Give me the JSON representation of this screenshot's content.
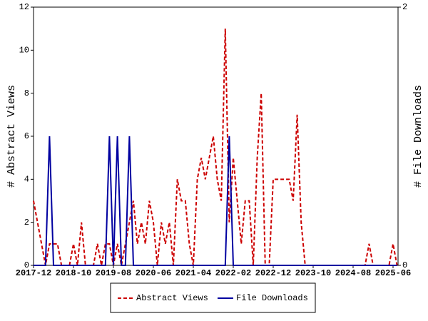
{
  "chart_data": {
    "type": "line",
    "x": [
      "2017-12",
      "2018-01",
      "2018-02",
      "2018-03",
      "2018-04",
      "2018-05",
      "2018-06",
      "2018-07",
      "2018-08",
      "2018-09",
      "2018-10",
      "2018-11",
      "2018-12",
      "2019-01",
      "2019-02",
      "2019-03",
      "2019-04",
      "2019-05",
      "2019-06",
      "2019-07",
      "2019-08",
      "2019-09",
      "2019-10",
      "2019-11",
      "2019-12",
      "2020-01",
      "2020-02",
      "2020-03",
      "2020-04",
      "2020-05",
      "2020-06",
      "2020-07",
      "2020-08",
      "2020-09",
      "2020-10",
      "2020-11",
      "2020-12",
      "2021-01",
      "2021-02",
      "2021-03",
      "2021-04",
      "2021-05",
      "2021-06",
      "2021-07",
      "2021-08",
      "2021-09",
      "2021-10",
      "2021-11",
      "2021-12",
      "2022-01",
      "2022-02",
      "2022-03",
      "2022-04",
      "2022-05",
      "2022-06",
      "2022-07",
      "2022-08",
      "2022-09",
      "2022-10",
      "2022-11",
      "2022-12",
      "2023-01",
      "2023-02",
      "2023-03",
      "2023-04",
      "2023-05",
      "2023-06",
      "2023-07",
      "2023-08",
      "2023-09",
      "2023-10",
      "2023-11",
      "2023-12",
      "2024-01",
      "2024-02",
      "2024-03",
      "2024-04",
      "2024-05",
      "2024-06",
      "2024-07",
      "2024-08",
      "2024-09",
      "2024-10",
      "2024-11",
      "2024-12",
      "2025-01",
      "2025-02",
      "2025-03",
      "2025-04",
      "2025-05",
      "2025-06",
      "2025-07"
    ],
    "xticks": [
      "2017-12",
      "2018-10",
      "2019-08",
      "2020-06",
      "2021-04",
      "2022-02",
      "2022-12",
      "2023-10",
      "2024-08",
      "2025-06"
    ],
    "series": [
      {
        "name": "Abstract Views",
        "color": "#cc0000",
        "dash": true,
        "values": [
          3,
          2,
          1,
          0,
          1,
          1,
          1,
          0,
          0,
          0,
          1,
          0,
          2,
          0,
          0,
          0,
          1,
          0,
          1,
          1,
          0,
          1,
          0,
          1,
          2,
          3,
          1,
          2,
          1,
          3,
          2,
          0,
          2,
          1,
          2,
          0,
          4,
          3,
          3,
          1,
          0,
          4,
          5,
          4,
          5,
          6,
          4,
          3,
          11,
          2,
          5,
          3,
          1,
          3,
          3,
          0,
          5,
          8,
          0,
          0,
          4,
          4,
          4,
          4,
          4,
          3,
          7,
          2,
          0,
          0,
          0,
          0,
          0,
          0,
          0,
          0,
          0,
          0,
          0,
          0,
          0,
          0,
          0,
          0,
          1,
          0,
          0,
          0,
          0,
          0,
          1,
          0
        ]
      },
      {
        "name": "File Downloads",
        "color": "#0000a0",
        "dash": false,
        "axis": "y2",
        "values": [
          0,
          0,
          0,
          0,
          1,
          0,
          0,
          0,
          0,
          0,
          0,
          0,
          0,
          0,
          0,
          0,
          0,
          0,
          0,
          1,
          0,
          1,
          0,
          0,
          1,
          0,
          0,
          0,
          0,
          0,
          0,
          0,
          0,
          0,
          0,
          0,
          0,
          0,
          0,
          0,
          0,
          0,
          0,
          0,
          0,
          0,
          0,
          0,
          0,
          1,
          0,
          0,
          0,
          0,
          0,
          0,
          0,
          0,
          0,
          0,
          0,
          0,
          0,
          0,
          0,
          0,
          0,
          0,
          0,
          0,
          0,
          0,
          0,
          0,
          0,
          0,
          0,
          0,
          0,
          0,
          0,
          0,
          0,
          0,
          0,
          0,
          0,
          0,
          0,
          0,
          0,
          0
        ]
      }
    ],
    "ylabel": "# Abstract Views",
    "y2label": "# File Downloads",
    "ylim": [
      0,
      12
    ],
    "yticks": [
      0,
      2,
      4,
      6,
      8,
      10,
      12
    ],
    "y2lim": [
      0,
      2
    ],
    "y2ticks": [
      0,
      2
    ]
  }
}
